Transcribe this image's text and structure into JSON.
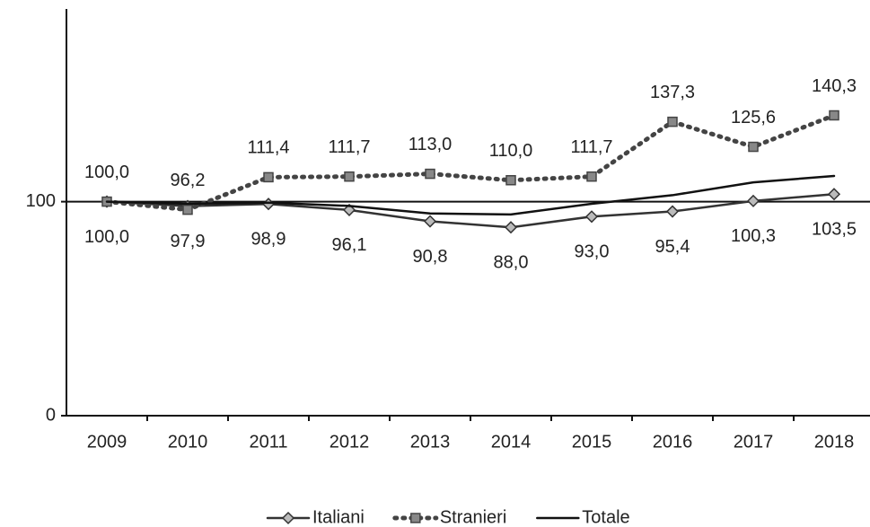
{
  "chart_data": {
    "type": "line",
    "categories": [
      "2009",
      "2010",
      "2011",
      "2012",
      "2013",
      "2014",
      "2015",
      "2016",
      "2017",
      "2018"
    ],
    "series": [
      {
        "name": "Italiani",
        "color": "#333333",
        "marker": "diamond",
        "values": [
          100.0,
          97.9,
          98.9,
          96.1,
          90.8,
          88.0,
          93.0,
          95.4,
          100.3,
          103.5
        ],
        "value_labels": [
          "100,0",
          "97,9",
          "98,9",
          "96,1",
          "90,8",
          "88,0",
          "93,0",
          "95,4",
          "100,3",
          "103,5"
        ]
      },
      {
        "name": "Stranieri",
        "color": "#444444",
        "marker": "square",
        "dash": true,
        "values": [
          100.0,
          96.2,
          111.4,
          111.7,
          113.0,
          110.0,
          111.7,
          137.3,
          125.6,
          140.3
        ],
        "value_labels": [
          "100,0",
          "96,2",
          "111,4",
          "111,7",
          "113,0",
          "110,0",
          "111,7",
          "137,3",
          "125,6",
          "140,3"
        ]
      },
      {
        "name": "Totale",
        "color": "#111111",
        "values": [
          100,
          99,
          99.5,
          98,
          94.5,
          94,
          99,
          103,
          109,
          112
        ]
      }
    ],
    "ylim": [
      0,
      190
    ],
    "yticks": [
      0,
      100
    ],
    "legend": "bottom"
  }
}
